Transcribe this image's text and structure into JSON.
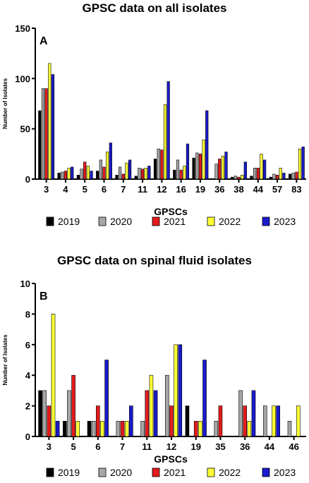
{
  "legend": [
    "2019",
    "2020",
    "2021",
    "2022",
    "2023"
  ],
  "colors": {
    "2019": "#000000",
    "2020": "#a6a6a6",
    "2021": "#e41a1c",
    "2022": "#ffff33",
    "2023": "#1a1acc"
  },
  "chart_data": [
    {
      "type": "bar",
      "title": "GPSC data on all isolates",
      "panel_label": "A",
      "xlabel": "GPSCs",
      "ylabel": "Number of Isolates",
      "ylim": [
        0,
        150
      ],
      "yticks": [
        0,
        50,
        100,
        150
      ],
      "categories": [
        "3",
        "4",
        "5",
        "6",
        "7",
        "11",
        "12",
        "16",
        "19",
        "36",
        "38",
        "44",
        "57",
        "83"
      ],
      "series": [
        {
          "name": "2019",
          "values": [
            68,
            6,
            4,
            8,
            4,
            3,
            20,
            9,
            21,
            0,
            2,
            3,
            2,
            5
          ]
        },
        {
          "name": "2020",
          "values": [
            90,
            7,
            10,
            19,
            12,
            11,
            30,
            19,
            26,
            15,
            3,
            11,
            5,
            6
          ]
        },
        {
          "name": "2021",
          "values": [
            90,
            8,
            17,
            12,
            5,
            10,
            29,
            9,
            25,
            20,
            2,
            11,
            4,
            7
          ]
        },
        {
          "name": "2022",
          "values": [
            115,
            11,
            13,
            27,
            16,
            11,
            74,
            13,
            39,
            23,
            4,
            25,
            11,
            30
          ]
        },
        {
          "name": "2023",
          "values": [
            104,
            12,
            8,
            36,
            19,
            13,
            97,
            35,
            68,
            27,
            17,
            19,
            6,
            32
          ]
        }
      ]
    },
    {
      "type": "bar",
      "title": "GPSC data on spinal fluid isolates",
      "panel_label": "B",
      "xlabel": "GPSCs",
      "ylabel": "Number of Isolates",
      "ylim": [
        0,
        10
      ],
      "yticks": [
        0,
        2,
        4,
        6,
        8,
        10
      ],
      "categories": [
        "3",
        "5",
        "6",
        "7",
        "11",
        "12",
        "19",
        "35",
        "36",
        "44",
        "46"
      ],
      "series": [
        {
          "name": "2019",
          "values": [
            3,
            1,
            1,
            0,
            0,
            0,
            2,
            0,
            0,
            0,
            0
          ]
        },
        {
          "name": "2020",
          "values": [
            3,
            3,
            1,
            1,
            1,
            4,
            0,
            1,
            3,
            2,
            1
          ]
        },
        {
          "name": "2021",
          "values": [
            2,
            4,
            2,
            1,
            3,
            2,
            1,
            2,
            2,
            0,
            0
          ]
        },
        {
          "name": "2022",
          "values": [
            8,
            1,
            1,
            1,
            4,
            6,
            1,
            0,
            1,
            2,
            2
          ]
        },
        {
          "name": "2023",
          "values": [
            1,
            0,
            5,
            2,
            3,
            6,
            5,
            0,
            3,
            2,
            0
          ]
        }
      ]
    }
  ]
}
